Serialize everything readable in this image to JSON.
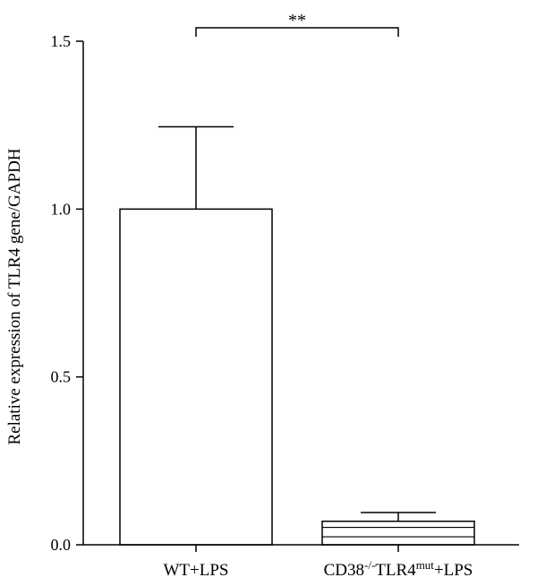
{
  "chart_data": {
    "type": "bar",
    "categories": [
      "WT+LPS",
      "CD38-/-TLR4mut+LPS"
    ],
    "category_labels": [
      {
        "parts": [
          {
            "text": "WT+LPS"
          }
        ]
      },
      {
        "parts": [
          {
            "text": "CD38"
          },
          {
            "text": "-/-",
            "sup": true
          },
          {
            "text": "TLR4"
          },
          {
            "text": "mut",
            "sup": true
          },
          {
            "text": "+LPS"
          }
        ]
      }
    ],
    "values": [
      1.0,
      0.07
    ],
    "errors": [
      0.245,
      0.026
    ],
    "ylabel": "Relative expression of TLR4 gene/GAPDH",
    "ylim": [
      0,
      1.5
    ],
    "yticks": [
      0.0,
      0.5,
      1.0,
      1.5
    ],
    "ytick_labels": [
      "0.0",
      "0.5",
      "1.0",
      "1.5"
    ],
    "significance": {
      "between": [
        0,
        1
      ],
      "label": "**"
    },
    "bar_fills": [
      "none",
      "horizontal-lines"
    ],
    "grid": false
  }
}
